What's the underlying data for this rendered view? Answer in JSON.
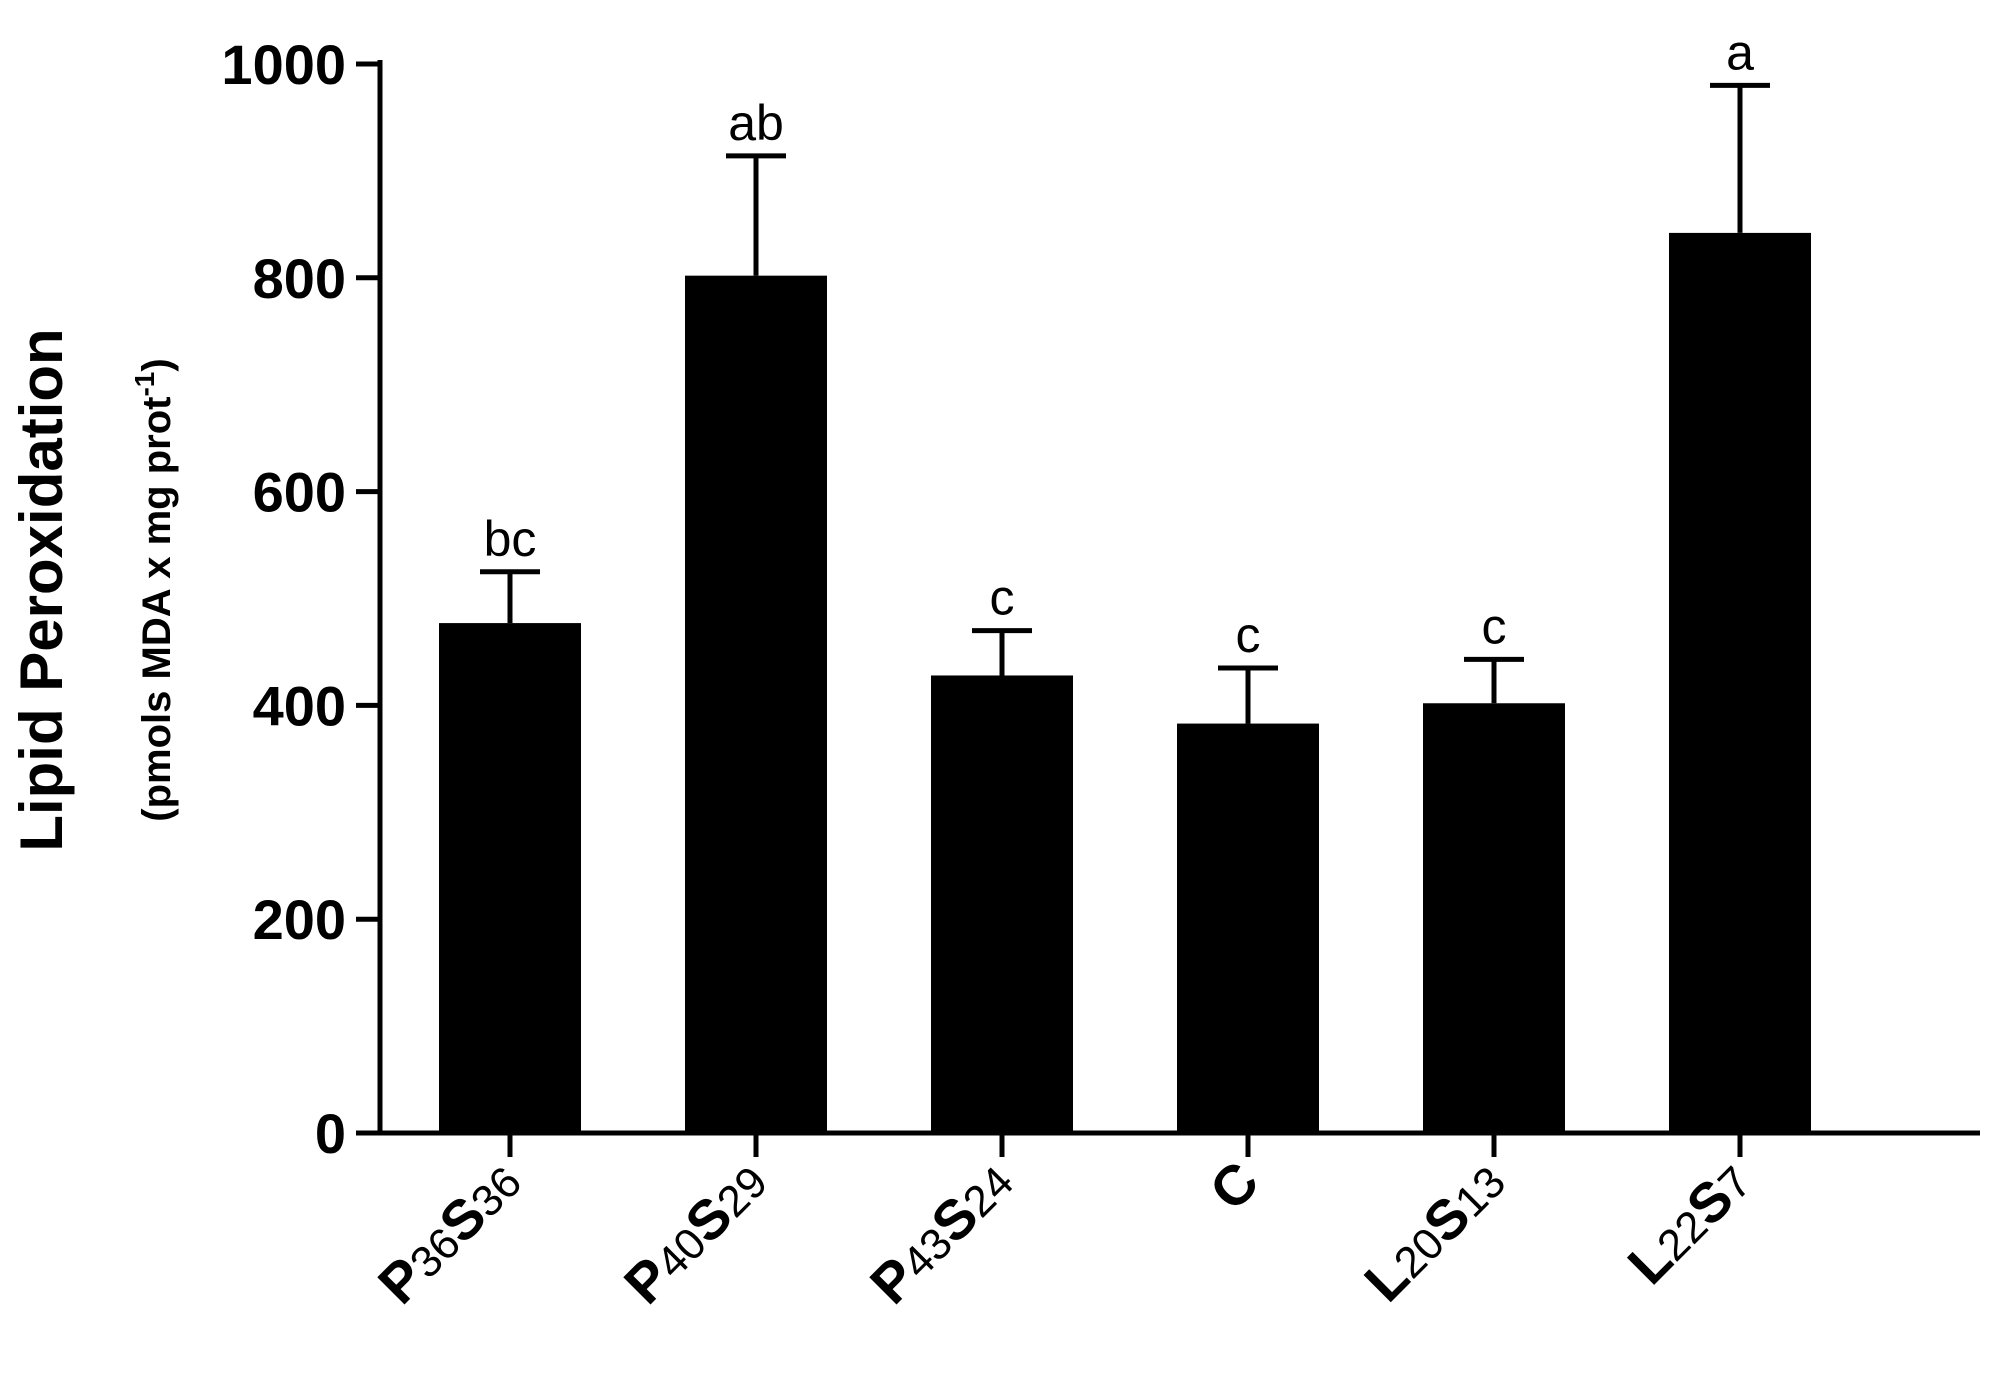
{
  "chart_data": {
    "type": "bar",
    "title": "",
    "ylabel": "Lipid Peroxidation",
    "ylabel_sub": {
      "base": "(pmols MDA x mg prot",
      "sup": "-1",
      "close": ")"
    },
    "xlabel": "",
    "ylim": [
      0,
      1000
    ],
    "yticks": [
      0,
      200,
      400,
      600,
      800,
      1000
    ],
    "categories": [
      {
        "label": "P36S36",
        "parts": [
          {
            "t": "P",
            "b": true
          },
          {
            "t": "36",
            "b": false
          },
          {
            "t": "S",
            "b": true
          },
          {
            "t": "36",
            "b": false
          }
        ]
      },
      {
        "label": "P40S29",
        "parts": [
          {
            "t": "P",
            "b": true
          },
          {
            "t": "40",
            "b": false
          },
          {
            "t": "S",
            "b": true
          },
          {
            "t": "29",
            "b": false
          }
        ]
      },
      {
        "label": "P43S24",
        "parts": [
          {
            "t": "P",
            "b": true
          },
          {
            "t": "43",
            "b": false
          },
          {
            "t": "S",
            "b": true
          },
          {
            "t": "24",
            "b": false
          }
        ]
      },
      {
        "label": "C",
        "parts": [
          {
            "t": "C",
            "b": true
          }
        ]
      },
      {
        "label": "L20S13",
        "parts": [
          {
            "t": "L",
            "b": true
          },
          {
            "t": "20",
            "b": false
          },
          {
            "t": "S",
            "b": true
          },
          {
            "t": "13",
            "b": false
          }
        ]
      },
      {
        "label": "L22S7",
        "parts": [
          {
            "t": "L",
            "b": true
          },
          {
            "t": "22",
            "b": false
          },
          {
            "t": "S",
            "b": true
          },
          {
            "t": "7",
            "b": false
          }
        ]
      }
    ],
    "values": [
      477,
      802,
      428,
      383,
      402,
      842
    ],
    "errors": [
      48,
      112,
      42,
      52,
      41,
      138
    ],
    "significance": [
      "bc",
      "ab",
      "c",
      "c",
      "c",
      "a"
    ],
    "bar_color": "#000000",
    "grid": false,
    "legend": "none"
  }
}
